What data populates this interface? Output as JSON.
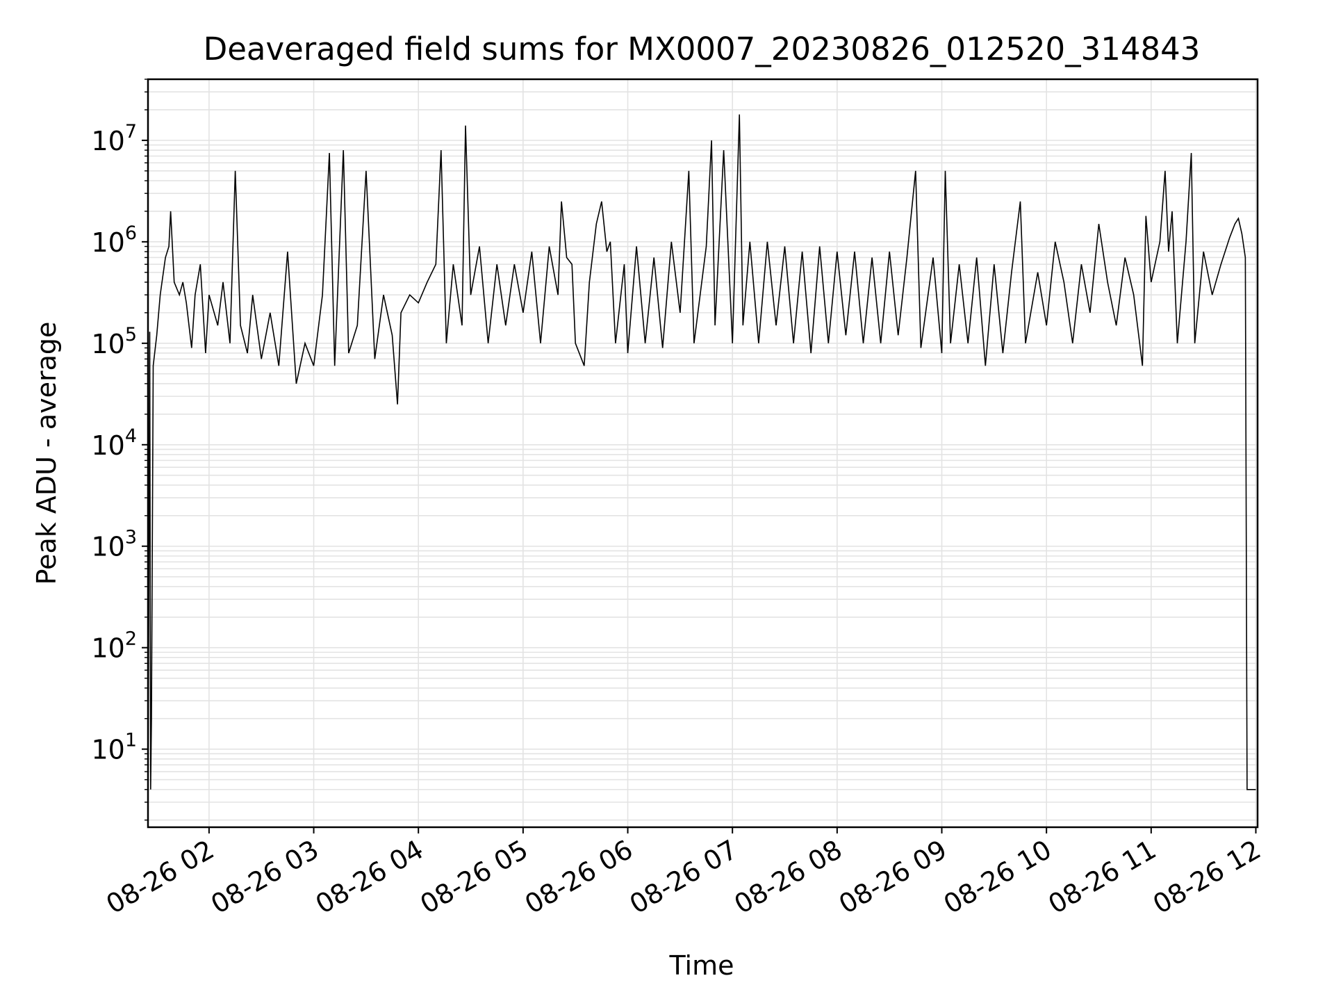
{
  "chart_data": {
    "type": "line",
    "title": "Deaveraged field sums for MX0007_20230826_012520_314843",
    "xlabel": "Time",
    "ylabel": "Peak ADU - average",
    "yscale": "log",
    "grid": true,
    "line_color": "#000000",
    "xlim": [
      "08-26 01:25",
      "08-26 12:01"
    ],
    "ylim": [
      1.7,
      40000000
    ],
    "x_ticks": [
      "08-26 02",
      "08-26 03",
      "08-26 04",
      "08-26 05",
      "08-26 06",
      "08-26 07",
      "08-26 08",
      "08-26 09",
      "08-26 10",
      "08-26 11",
      "08-26 12"
    ],
    "y_ticks": [
      {
        "base": "10",
        "exp": "1"
      },
      {
        "base": "10",
        "exp": "2"
      },
      {
        "base": "10",
        "exp": "3"
      },
      {
        "base": "10",
        "exp": "4"
      },
      {
        "base": "10",
        "exp": "5"
      },
      {
        "base": "10",
        "exp": "6"
      },
      {
        "base": "10",
        "exp": "7"
      }
    ],
    "series": [
      {
        "points": [
          [
            "08-26 01:25",
            1.8
          ],
          [
            "08-26 01:26",
            130000
          ],
          [
            "08-26 01:26:30",
            4
          ],
          [
            "08-26 01:27",
            20
          ],
          [
            "08-26 01:28",
            60000
          ],
          [
            "08-26 01:30",
            120000
          ],
          [
            "08-26 01:32",
            300000
          ],
          [
            "08-26 01:35",
            700000
          ],
          [
            "08-26 01:37",
            900000
          ],
          [
            "08-26 01:38",
            2000000
          ],
          [
            "08-26 01:40",
            400000
          ],
          [
            "08-26 01:43",
            300000
          ],
          [
            "08-26 01:45",
            400000
          ],
          [
            "08-26 01:47",
            250000
          ],
          [
            "08-26 01:50",
            90000
          ],
          [
            "08-26 01:52",
            300000
          ],
          [
            "08-26 01:55",
            600000
          ],
          [
            "08-26 01:58",
            80000
          ],
          [
            "08-26 02:00",
            300000
          ],
          [
            "08-26 02:05",
            150000
          ],
          [
            "08-26 02:08",
            400000
          ],
          [
            "08-26 02:12",
            100000
          ],
          [
            "08-26 02:15",
            5000000
          ],
          [
            "08-26 02:18",
            150000
          ],
          [
            "08-26 02:22",
            80000
          ],
          [
            "08-26 02:25",
            300000
          ],
          [
            "08-26 02:30",
            70000
          ],
          [
            "08-26 02:35",
            200000
          ],
          [
            "08-26 02:40",
            60000
          ],
          [
            "08-26 02:45",
            800000
          ],
          [
            "08-26 02:50",
            40000
          ],
          [
            "08-26 02:55",
            100000
          ],
          [
            "08-26 03:00",
            60000
          ],
          [
            "08-26 03:05",
            300000
          ],
          [
            "08-26 03:09",
            7500000
          ],
          [
            "08-26 03:12",
            60000
          ],
          [
            "08-26 03:17",
            8000000
          ],
          [
            "08-26 03:20",
            80000
          ],
          [
            "08-26 03:25",
            150000
          ],
          [
            "08-26 03:30",
            5000000
          ],
          [
            "08-26 03:35",
            70000
          ],
          [
            "08-26 03:40",
            300000
          ],
          [
            "08-26 03:45",
            120000
          ],
          [
            "08-26 03:48",
            25000
          ],
          [
            "08-26 03:50",
            200000
          ],
          [
            "08-26 03:55",
            300000
          ],
          [
            "08-26 04:00",
            250000
          ],
          [
            "08-26 04:05",
            400000
          ],
          [
            "08-26 04:10",
            600000
          ],
          [
            "08-26 04:13",
            8000000
          ],
          [
            "08-26 04:16",
            100000
          ],
          [
            "08-26 04:20",
            600000
          ],
          [
            "08-26 04:25",
            150000
          ],
          [
            "08-26 04:27",
            14000000
          ],
          [
            "08-26 04:30",
            300000
          ],
          [
            "08-26 04:35",
            900000
          ],
          [
            "08-26 04:40",
            100000
          ],
          [
            "08-26 04:45",
            600000
          ],
          [
            "08-26 04:50",
            150000
          ],
          [
            "08-26 04:55",
            600000
          ],
          [
            "08-26 05:00",
            200000
          ],
          [
            "08-26 05:05",
            800000
          ],
          [
            "08-26 05:10",
            100000
          ],
          [
            "08-26 05:15",
            900000
          ],
          [
            "08-26 05:20",
            300000
          ],
          [
            "08-26 05:22",
            2500000
          ],
          [
            "08-26 05:25",
            700000
          ],
          [
            "08-26 05:28",
            600000
          ],
          [
            "08-26 05:30",
            100000
          ],
          [
            "08-26 05:35",
            60000
          ],
          [
            "08-26 05:38",
            400000
          ],
          [
            "08-26 05:42",
            1500000
          ],
          [
            "08-26 05:45",
            2500000
          ],
          [
            "08-26 05:48",
            800000
          ],
          [
            "08-26 05:50",
            1000000
          ],
          [
            "08-26 05:53",
            100000
          ],
          [
            "08-26 05:58",
            600000
          ],
          [
            "08-26 06:00",
            80000
          ],
          [
            "08-26 06:05",
            900000
          ],
          [
            "08-26 06:10",
            100000
          ],
          [
            "08-26 06:15",
            700000
          ],
          [
            "08-26 06:20",
            90000
          ],
          [
            "08-26 06:25",
            1000000
          ],
          [
            "08-26 06:30",
            200000
          ],
          [
            "08-26 06:35",
            5000000
          ],
          [
            "08-26 06:38",
            100000
          ],
          [
            "08-26 06:45",
            900000
          ],
          [
            "08-26 06:48",
            10000000
          ],
          [
            "08-26 06:50",
            150000
          ],
          [
            "08-26 06:55",
            8000000
          ],
          [
            "08-26 07:00",
            100000
          ],
          [
            "08-26 07:04",
            18000000
          ],
          [
            "08-26 07:06",
            150000
          ],
          [
            "08-26 07:10",
            1000000
          ],
          [
            "08-26 07:15",
            100000
          ],
          [
            "08-26 07:20",
            1000000
          ],
          [
            "08-26 07:25",
            150000
          ],
          [
            "08-26 07:30",
            900000
          ],
          [
            "08-26 07:35",
            100000
          ],
          [
            "08-26 07:40",
            800000
          ],
          [
            "08-26 07:45",
            80000
          ],
          [
            "08-26 07:50",
            900000
          ],
          [
            "08-26 07:55",
            100000
          ],
          [
            "08-26 08:00",
            800000
          ],
          [
            "08-26 08:05",
            120000
          ],
          [
            "08-26 08:10",
            800000
          ],
          [
            "08-26 08:15",
            100000
          ],
          [
            "08-26 08:20",
            700000
          ],
          [
            "08-26 08:25",
            100000
          ],
          [
            "08-26 08:30",
            800000
          ],
          [
            "08-26 08:35",
            120000
          ],
          [
            "08-26 08:40",
            700000
          ],
          [
            "08-26 08:45",
            5000000
          ],
          [
            "08-26 08:48",
            90000
          ],
          [
            "08-26 08:55",
            700000
          ],
          [
            "08-26 09:00",
            80000
          ],
          [
            "08-26 09:02",
            5000000
          ],
          [
            "08-26 09:05",
            100000
          ],
          [
            "08-26 09:10",
            600000
          ],
          [
            "08-26 09:15",
            100000
          ],
          [
            "08-26 09:20",
            700000
          ],
          [
            "08-26 09:25",
            60000
          ],
          [
            "08-26 09:30",
            600000
          ],
          [
            "08-26 09:35",
            80000
          ],
          [
            "08-26 09:40",
            500000
          ],
          [
            "08-26 09:45",
            2500000
          ],
          [
            "08-26 09:48",
            100000
          ],
          [
            "08-26 09:55",
            500000
          ],
          [
            "08-26 10:00",
            150000
          ],
          [
            "08-26 10:05",
            1000000
          ],
          [
            "08-26 10:10",
            400000
          ],
          [
            "08-26 10:15",
            100000
          ],
          [
            "08-26 10:20",
            600000
          ],
          [
            "08-26 10:25",
            200000
          ],
          [
            "08-26 10:30",
            1500000
          ],
          [
            "08-26 10:35",
            400000
          ],
          [
            "08-26 10:40",
            150000
          ],
          [
            "08-26 10:45",
            700000
          ],
          [
            "08-26 10:50",
            300000
          ],
          [
            "08-26 10:55",
            60000
          ],
          [
            "08-26 10:57",
            1800000
          ],
          [
            "08-26 11:00",
            400000
          ],
          [
            "08-26 11:05",
            1000000
          ],
          [
            "08-26 11:08",
            5000000
          ],
          [
            "08-26 11:10",
            800000
          ],
          [
            "08-26 11:12",
            2000000
          ],
          [
            "08-26 11:15",
            100000
          ],
          [
            "08-26 11:20",
            1000000
          ],
          [
            "08-26 11:23",
            7500000
          ],
          [
            "08-26 11:25",
            100000
          ],
          [
            "08-26 11:30",
            800000
          ],
          [
            "08-26 11:35",
            300000
          ],
          [
            "08-26 11:40",
            600000
          ],
          [
            "08-26 11:45",
            1100000
          ],
          [
            "08-26 11:48",
            1500000
          ],
          [
            "08-26 11:50",
            1700000
          ],
          [
            "08-26 11:52",
            1200000
          ],
          [
            "08-26 11:54",
            700000
          ],
          [
            "08-26 11:55",
            4
          ],
          [
            "08-26 11:58",
            4
          ],
          [
            "08-26 12:00",
            4
          ]
        ]
      }
    ]
  }
}
